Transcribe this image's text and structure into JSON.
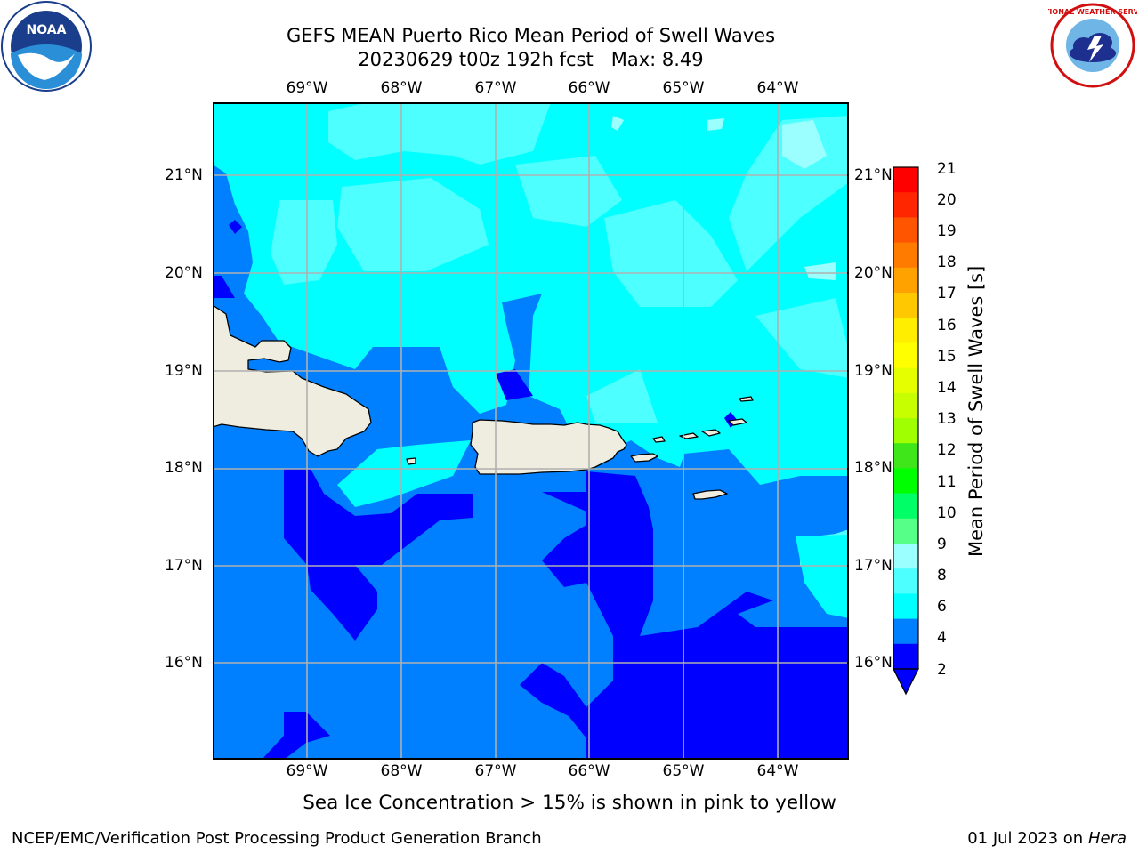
{
  "title": {
    "line1": "GEFS MEAN Puerto Rico Mean Period of Swell Waves",
    "line2": "20230629 t00z 192h fcst   Max: 8.49"
  },
  "logos": {
    "left": {
      "text_outer": "NATIONAL OCEANIC AND ATMOSPHERIC ADMINISTRATION",
      "text_bottom": "U.S. DEPARTMENT OF COMMERCE",
      "center": "NOAA"
    },
    "right": {
      "text": "NATIONAL WEATHER SERVICE"
    }
  },
  "map": {
    "lon_ticks": [
      "69°W",
      "68°W",
      "67°W",
      "66°W",
      "65°W",
      "64°W"
    ],
    "lat_ticks": [
      "21°N",
      "20°N",
      "19°N",
      "18°N",
      "17°N",
      "16°N"
    ],
    "colors": {
      "land": "#eeeddf",
      "period_2_4": "#0080ff",
      "period_4_6": "#00ffff",
      "period_below_2": "#0000ff",
      "period_6_8": "#4dffff",
      "grid": "#b0b0b0"
    }
  },
  "colorbar": {
    "title": "Mean Period of Swell Waves [s]",
    "labels": [
      "21",
      "20",
      "19",
      "18",
      "17",
      "16",
      "15",
      "14",
      "13",
      "12",
      "11",
      "10",
      "9",
      "8",
      "6",
      "4",
      "2"
    ],
    "colors": [
      "#ff0000",
      "#ff2600",
      "#ff5500",
      "#ff7b00",
      "#ffa200",
      "#ffc800",
      "#ffee00",
      "#ffff00",
      "#e6ff00",
      "#c8ff00",
      "#a0ff00",
      "#3fe61a",
      "#00ff00",
      "#00ff66",
      "#55ff88",
      "#9cffff",
      "#4dffff",
      "#00ffff",
      "#0080ff",
      "#0000ff"
    ]
  },
  "note": "Sea Ice Concentration > 15% is shown in pink to yellow",
  "footer": {
    "left": "NCEP/EMC/Verification Post Processing Product Generation Branch",
    "date": "01 Jul 2023 on ",
    "machine": "Hera"
  }
}
